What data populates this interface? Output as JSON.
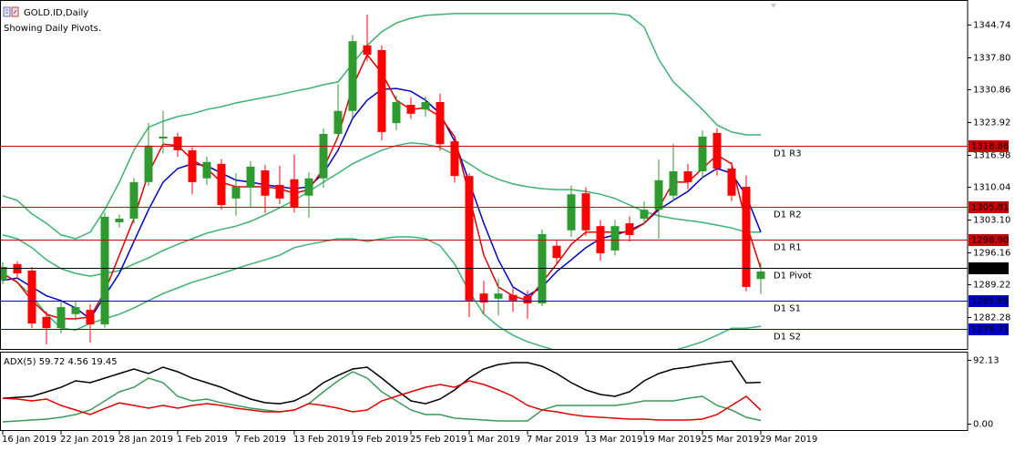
{
  "chart_data": [
    {
      "type": "candlestick",
      "title": "GOLD.ID,Daily",
      "subtitle": "Showing Daily Pivots.",
      "categories": [
        "16 Jan 2019",
        null,
        null,
        null,
        "22 Jan 2019",
        null,
        null,
        null,
        "28 Jan 2019",
        null,
        null,
        null,
        "1 Feb 2019",
        null,
        null,
        null,
        "7 Feb 2019",
        null,
        null,
        null,
        "13 Feb 2019",
        null,
        null,
        null,
        "19 Feb 2019",
        null,
        null,
        null,
        "25 Feb 2019",
        null,
        null,
        null,
        "1 Mar 2019",
        null,
        null,
        null,
        "7 Mar 2019",
        null,
        null,
        null,
        "13 Mar 2019",
        null,
        null,
        null,
        "19 Mar 2019",
        null,
        null,
        null,
        "25 Mar 2019",
        null,
        null,
        null,
        "29 Mar 2019"
      ],
      "open": [
        1290.1,
        1293.6,
        1292.2,
        1282.3,
        1279.9,
        1282.9,
        1283.8,
        1280.7,
        1302.5,
        1303.3,
        1311.1,
        1320.4,
        1320.8,
        1317.9,
        1311.9,
        1315.0,
        1307.6,
        1310.1,
        1313.6,
        1310.5,
        1311.7,
        1308.2,
        1311.9,
        1321.4,
        1326.3,
        1340.3,
        1339.3,
        1323.7,
        1327.6,
        1326.6,
        1328.2,
        1319.8,
        1312.4,
        1287.3,
        1286.2,
        1287.0,
        1286.8,
        1285.2,
        1297.5,
        1300.8,
        1308.7,
        1301.7,
        1296.5,
        1302.3,
        1303.3,
        1305.2,
        1308.2,
        1313.4,
        1313.4,
        1321.6,
        1314.0,
        1310.1,
        1290.4
      ],
      "high": [
        1294.0,
        1294.2,
        1293.0,
        1283.5,
        1285.6,
        1285.8,
        1285.0,
        1304.6,
        1304.2,
        1312.0,
        1323.7,
        1326.3,
        1321.6,
        1318.6,
        1316.6,
        1316.0,
        1313.0,
        1315.6,
        1314.8,
        1314.6,
        1317.0,
        1313.2,
        1322.6,
        1332.0,
        1342.5,
        1346.9,
        1340.3,
        1329.6,
        1329.2,
        1329.4,
        1330.0,
        1320.6,
        1313.0,
        1290.0,
        1290.4,
        1288.4,
        1288.0,
        1301.0,
        1298.6,
        1310.4,
        1310.0,
        1303.0,
        1303.0,
        1303.8,
        1307.0,
        1315.9,
        1319.3,
        1315.0,
        1322.1,
        1322.6,
        1315.3,
        1312.5,
        1294.0
      ],
      "low": [
        1289.3,
        1290.8,
        1279.9,
        1276.4,
        1278.8,
        1281.6,
        1276.8,
        1280.0,
        1301.4,
        1302.2,
        1310.3,
        1317.2,
        1316.5,
        1308.5,
        1310.5,
        1305.2,
        1303.9,
        1305.6,
        1304.5,
        1306.4,
        1304.6,
        1303.5,
        1309.9,
        1320.8,
        1324.8,
        1336.9,
        1320.0,
        1322.2,
        1324.6,
        1325.0,
        1317.8,
        1311.0,
        1282.3,
        1283.0,
        1282.6,
        1283.4,
        1281.9,
        1284.6,
        1293.5,
        1299.4,
        1299.6,
        1294.3,
        1295.4,
        1298.4,
        1302.0,
        1299.0,
        1307.0,
        1309.6,
        1312.0,
        1312.5,
        1307.0,
        1287.8,
        1287.2
      ],
      "close": [
        1293.0,
        1291.6,
        1280.9,
        1279.9,
        1284.4,
        1284.4,
        1280.7,
        1303.7,
        1303.3,
        1311.1,
        1318.9,
        1320.8,
        1317.9,
        1311.1,
        1315.4,
        1306.2,
        1310.1,
        1314.4,
        1308.2,
        1307.6,
        1305.6,
        1311.9,
        1321.4,
        1326.3,
        1341.2,
        1338.3,
        1321.8,
        1328.2,
        1325.7,
        1328.2,
        1319.2,
        1312.4,
        1285.8,
        1285.4,
        1287.3,
        1285.8,
        1285.2,
        1300.0,
        1294.9,
        1308.5,
        1300.8,
        1295.9,
        1301.7,
        1299.8,
        1305.2,
        1311.5,
        1313.4,
        1311.1,
        1320.8,
        1314.0,
        1308.2,
        1288.7,
        1292.0
      ],
      "up_color": "#2f9a2f",
      "down_color": "#ff0000",
      "series": [
        {
          "color": "#3cb371",
          "values": [
            1308.2,
            1307.2,
            1304.3,
            1302.3,
            1299.8,
            1299.0,
            1300.4,
            1305.2,
            1311.1,
            1317.9,
            1322.8,
            1324.1,
            1325.1,
            1325.7,
            1326.6,
            1327.2,
            1328.0,
            1328.6,
            1329.2,
            1329.8,
            1330.5,
            1331.1,
            1331.9,
            1332.5,
            1336.4,
            1340.3,
            1343.2,
            1345.1,
            1346.1,
            1346.7,
            1346.9,
            1347.1,
            1347.1,
            1347.1,
            1347.1,
            1347.1,
            1347.1,
            1347.1,
            1347.1,
            1347.1,
            1347.1,
            1347.1,
            1347.1,
            1346.7,
            1344.2,
            1337.3,
            1332.5,
            1329.6,
            1326.6,
            1323.3,
            1321.8,
            1321.2,
            1321.2
          ]
        },
        {
          "color": "#3cb371",
          "values": [
            1299.8,
            1299.0,
            1297.1,
            1294.5,
            1292.6,
            1291.6,
            1291.0,
            1291.6,
            1292.2,
            1293.6,
            1294.9,
            1296.5,
            1297.8,
            1299.0,
            1300.2,
            1301.0,
            1301.7,
            1302.7,
            1304.1,
            1305.6,
            1307.2,
            1309.1,
            1311.1,
            1313.0,
            1315.0,
            1316.5,
            1317.9,
            1318.9,
            1319.5,
            1319.2,
            1318.5,
            1316.9,
            1315.0,
            1313.0,
            1311.7,
            1310.7,
            1310.1,
            1309.7,
            1309.5,
            1309.5,
            1309.1,
            1308.5,
            1307.6,
            1306.2,
            1304.8,
            1303.9,
            1303.3,
            1302.9,
            1302.5,
            1301.9,
            1301.3,
            1300.4,
            1300.4
          ]
        },
        {
          "color": "#3cb371",
          "values": [
            1291.6,
            1289.7,
            1286.8,
            1282.9,
            1279.9,
            1279.5,
            1280.9,
            1281.9,
            1282.9,
            1284.2,
            1285.8,
            1287.3,
            1288.5,
            1289.7,
            1290.6,
            1291.6,
            1292.6,
            1293.6,
            1294.5,
            1295.5,
            1297.1,
            1297.8,
            1298.4,
            1299.0,
            1299.0,
            1298.4,
            1299.0,
            1299.4,
            1299.4,
            1299.0,
            1297.5,
            1293.6,
            1287.7,
            1282.9,
            1280.3,
            1278.4,
            1277.0,
            1276.0,
            1275.1,
            1274.1,
            1274.1,
            1274.1,
            1274.1,
            1274.1,
            1274.1,
            1274.1,
            1275.1,
            1276.0,
            1277.0,
            1278.4,
            1279.9,
            1279.9,
            1280.3
          ]
        },
        {
          "color": "#0000c8",
          "values": [
            1290.1,
            1290.6,
            1288.7,
            1286.8,
            1285.8,
            1284.2,
            1281.9,
            1286.8,
            1291.6,
            1298.4,
            1305.2,
            1311.1,
            1314.0,
            1315.0,
            1314.6,
            1313.0,
            1311.5,
            1311.1,
            1310.5,
            1310.1,
            1309.7,
            1310.1,
            1313.0,
            1317.9,
            1324.7,
            1328.6,
            1330.9,
            1331.1,
            1330.5,
            1328.6,
            1325.7,
            1319.8,
            1311.1,
            1302.3,
            1294.5,
            1288.7,
            1286.8,
            1288.7,
            1292.0,
            1294.5,
            1297.1,
            1299.0,
            1299.8,
            1300.8,
            1302.3,
            1305.2,
            1307.2,
            1309.1,
            1312.1,
            1314.0,
            1313.0,
            1308.2,
            1300.4
          ]
        },
        {
          "color": "#e00000",
          "values": [
            1291.6,
            1289.7,
            1285.8,
            1282.9,
            1281.9,
            1281.9,
            1282.3,
            1287.7,
            1295.5,
            1303.3,
            1313.0,
            1319.2,
            1318.9,
            1315.9,
            1314.0,
            1311.1,
            1310.1,
            1310.1,
            1310.1,
            1309.7,
            1308.7,
            1309.5,
            1314.0,
            1320.8,
            1331.5,
            1338.3,
            1334.4,
            1328.6,
            1326.6,
            1327.0,
            1325.1,
            1320.8,
            1308.2,
            1295.5,
            1288.7,
            1286.8,
            1285.8,
            1289.7,
            1293.6,
            1297.8,
            1300.4,
            1300.4,
            1300.4,
            1300.4,
            1302.3,
            1305.6,
            1311.1,
            1311.1,
            1314.0,
            1316.9,
            1315.0,
            1302.3,
            1292.6
          ]
        }
      ],
      "levels": [
        {
          "name": "D1 R3",
          "value": 1318.86,
          "color": "#cc0000"
        },
        {
          "name": "D1 R2",
          "value": 1305.81,
          "color": "#cc0000"
        },
        {
          "name": "D1 R1",
          "value": 1298.9,
          "label": "1298.90",
          "color": "#cc0000"
        },
        {
          "name": "D1 Pivot",
          "value": 1292.76,
          "color": "#000000"
        },
        {
          "name": "D1 S1",
          "value": 1285.85,
          "color": "#0000cc"
        },
        {
          "name": "D1 S2",
          "value": 1279.71,
          "color": "#0000cc"
        }
      ],
      "ylim": [
        1275.46,
        1349.8
      ],
      "yticks": [
        1344.74,
        {
          "value": 1337.8,
          "label": "1337.80"
        },
        1330.86,
        1323.92,
        1316.98,
        1310.04,
        {
          "value": 1303.1,
          "label": "1303.10"
        },
        1296.16,
        1289.22,
        1282.28
      ]
    },
    {
      "type": "line",
      "title": "ADX(5) 59.72 4.56 19.45",
      "series": [
        {
          "color": "#000000",
          "values": [
            36.8,
            38.0,
            39.5,
            46.0,
            52.6,
            61.9,
            59.2,
            65.8,
            72.4,
            79.0,
            72.4,
            81.6,
            75.0,
            65.8,
            59.2,
            52.6,
            43.4,
            35.5,
            30.3,
            28.9,
            32.9,
            43.4,
            59.2,
            69.7,
            79.0,
            81.6,
            65.8,
            48.7,
            32.9,
            28.9,
            35.5,
            48.7,
            65.8,
            79.0,
            85.5,
            88.2,
            88.2,
            82.9,
            72.4,
            59.2,
            48.7,
            42.1,
            39.5,
            46.1,
            61.9,
            72.4,
            79.0,
            81.6,
            85.5,
            88.2,
            90.5,
            59.0,
            59.72
          ]
        },
        {
          "color": "#3a9a5a",
          "values": [
            2.6,
            3.9,
            5.3,
            6.6,
            9.2,
            13.2,
            19.7,
            32.9,
            46.1,
            52.6,
            65.8,
            59.2,
            39.5,
            32.9,
            35.5,
            30.0,
            26.3,
            22.4,
            19.7,
            17.1,
            19.7,
            29.0,
            46.1,
            61.9,
            75.0,
            65.8,
            46.1,
            32.9,
            19.7,
            13.2,
            13.2,
            7.9,
            6.6,
            5.3,
            3.9,
            3.9,
            3.9,
            19.7,
            26.3,
            26.3,
            26.3,
            26.3,
            26.3,
            29.0,
            32.9,
            32.9,
            32.9,
            36.8,
            39.5,
            26.3,
            19.7,
            9.2,
            4.56
          ]
        },
        {
          "color": "#e00000",
          "values": [
            36.8,
            35.5,
            32.9,
            35.5,
            26.3,
            19.7,
            13.2,
            22.0,
            30.0,
            26.3,
            22.4,
            26.3,
            22.4,
            26.3,
            29.0,
            26.3,
            22.4,
            19.7,
            17.1,
            17.1,
            19.7,
            29.0,
            26.3,
            22.4,
            17.1,
            19.7,
            32.9,
            39.5,
            46.1,
            52.6,
            56.6,
            52.6,
            61.9,
            56.6,
            48.7,
            39.5,
            26.3,
            19.7,
            17.1,
            13.2,
            10.5,
            9.2,
            7.9,
            6.6,
            6.6,
            5.3,
            5.3,
            5.3,
            6.6,
            13.2,
            26.3,
            39.5,
            19.45
          ]
        }
      ],
      "ylim": [
        -9.2,
        102.7
      ],
      "yticks": [
        92.13,
        {
          "value": 0,
          "label": "0.00"
        }
      ]
    }
  ]
}
